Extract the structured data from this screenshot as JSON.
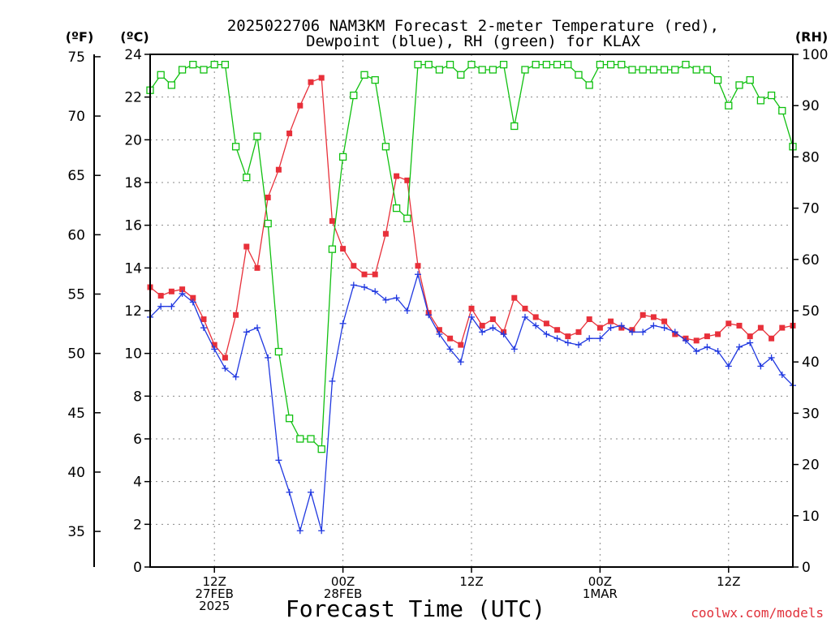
{
  "title": {
    "line1": "2025022706 NAM3KM Forecast 2-meter Temperature (red),",
    "line2": "Dewpoint (blue), RH (green) for KLAX"
  },
  "axis_labels": {
    "fahrenheit": "(ºF)",
    "celsius": "(ºC)",
    "rh": "(RH)"
  },
  "xlabel": "Forecast Time (UTC)",
  "watermark": "coolwx.com/models",
  "colors": {
    "temp": "#e8303a",
    "dewpoint": "#2038e0",
    "rh": "#10c010",
    "grid": "#888888",
    "axis": "#000000"
  },
  "chart_data": {
    "type": "line",
    "x_unit": "forecast hour from 2025022706 (3h steps, 00Z 28FEB = hour 18)",
    "x_ticks": [
      {
        "hour": 6,
        "label1": "12Z",
        "label2": "27FEB",
        "label3": "2025"
      },
      {
        "hour": 18,
        "label1": "00Z",
        "label2": "28FEB",
        "label3": ""
      },
      {
        "hour": 30,
        "label1": "12Z",
        "label2": "",
        "label3": ""
      },
      {
        "hour": 42,
        "label1": "00Z",
        "label2": "1MAR",
        "label3": ""
      },
      {
        "hour": 54,
        "label1": "12Z",
        "label2": "",
        "label3": ""
      }
    ],
    "xlim": [
      0,
      60
    ],
    "ylim_c": [
      0,
      24
    ],
    "yticks_c": [
      "0",
      "2",
      "4",
      "6",
      "8",
      "10",
      "12",
      "14",
      "16",
      "18",
      "20",
      "22",
      "24"
    ],
    "ylim_f": [
      32,
      75.2
    ],
    "yticks_f": [
      "35",
      "40",
      "45",
      "50",
      "55",
      "60",
      "65",
      "70",
      "75"
    ],
    "ylim_rh": [
      0,
      100
    ],
    "yticks_rh": [
      "0",
      "10",
      "20",
      "30",
      "40",
      "50",
      "60",
      "70",
      "80",
      "90",
      "100"
    ],
    "grid": true,
    "series": [
      {
        "name": "Temperature",
        "axis": "celsius",
        "marker": "filled-square",
        "x": [
          0,
          1,
          2,
          3,
          4,
          5,
          6,
          7,
          8,
          9,
          10,
          11,
          12,
          13,
          14,
          15,
          16,
          17,
          18,
          19,
          20,
          21,
          22,
          23,
          24,
          25,
          26,
          27,
          28,
          29,
          30,
          31,
          32,
          33,
          34,
          35,
          36,
          37,
          38,
          39,
          40,
          41,
          42,
          43,
          44,
          45,
          46,
          47,
          48,
          49,
          50,
          51,
          52,
          53,
          54,
          55,
          56,
          57,
          58,
          59,
          60
        ],
        "values": [
          13.1,
          12.7,
          12.9,
          13.0,
          12.6,
          11.6,
          10.4,
          9.8,
          11.8,
          15.0,
          14.0,
          17.3,
          18.6,
          20.3,
          21.6,
          22.7,
          22.9,
          16.2,
          14.9,
          14.1,
          13.7,
          13.7,
          15.6,
          18.3,
          18.1,
          14.1,
          11.9,
          11.1,
          10.7,
          10.4,
          12.1,
          11.3,
          11.6,
          11.0,
          12.6,
          12.1,
          11.7,
          11.4,
          11.1,
          10.8,
          11.0,
          11.6,
          11.2,
          11.5,
          11.2,
          11.1,
          11.8,
          11.7,
          11.5,
          10.9,
          10.7,
          10.6,
          10.8,
          10.9,
          11.4,
          11.3,
          10.8,
          11.2,
          10.7,
          11.2,
          11.3
        ]
      },
      {
        "name": "Dewpoint",
        "axis": "celsius",
        "marker": "plus",
        "x": [
          0,
          1,
          2,
          3,
          4,
          5,
          6,
          7,
          8,
          9,
          10,
          11,
          12,
          13,
          14,
          15,
          16,
          17,
          18,
          19,
          20,
          21,
          22,
          23,
          24,
          25,
          26,
          27,
          28,
          29,
          30,
          31,
          32,
          33,
          34,
          35,
          36,
          37,
          38,
          39,
          40,
          41,
          42,
          43,
          44,
          45,
          46,
          47,
          48,
          49,
          50,
          51,
          52,
          53,
          54,
          55,
          56,
          57,
          58,
          59,
          60
        ],
        "values": [
          11.7,
          12.2,
          12.2,
          12.8,
          12.4,
          11.2,
          10.2,
          9.3,
          8.9,
          11.0,
          11.2,
          9.8,
          5.0,
          3.5,
          1.7,
          3.5,
          1.7,
          8.7,
          11.4,
          13.2,
          13.1,
          12.9,
          12.5,
          12.6,
          12.0,
          13.7,
          11.8,
          10.9,
          10.2,
          9.6,
          11.7,
          11.0,
          11.2,
          10.9,
          10.2,
          11.7,
          11.3,
          10.9,
          10.7,
          10.5,
          10.4,
          10.7,
          10.7,
          11.2,
          11.3,
          11.0,
          11.0,
          11.3,
          11.2,
          11.0,
          10.6,
          10.1,
          10.3,
          10.1,
          9.4,
          10.3,
          10.5,
          9.4,
          9.8,
          9.0,
          8.5
        ]
      },
      {
        "name": "RH",
        "axis": "rh",
        "marker": "open-square",
        "x": [
          0,
          1,
          2,
          3,
          4,
          5,
          6,
          7,
          8,
          9,
          10,
          11,
          12,
          13,
          14,
          15,
          16,
          17,
          18,
          19,
          20,
          21,
          22,
          23,
          24,
          25,
          26,
          27,
          28,
          29,
          30,
          31,
          32,
          33,
          34,
          35,
          36,
          37,
          38,
          39,
          40,
          41,
          42,
          43,
          44,
          45,
          46,
          47,
          48,
          49,
          50,
          51,
          52,
          53,
          54,
          55,
          56,
          57,
          58,
          59,
          60
        ],
        "values": [
          93,
          96,
          94,
          97,
          98,
          97,
          98,
          98,
          82,
          76,
          84,
          67,
          42,
          29,
          25,
          25,
          23,
          62,
          80,
          92,
          96,
          95,
          82,
          70,
          68,
          98,
          98,
          97,
          98,
          96,
          98,
          97,
          97,
          98,
          86,
          97,
          98,
          98,
          98,
          98,
          96,
          94,
          98,
          98,
          98,
          97,
          97,
          97,
          97,
          97,
          98,
          97,
          97,
          95,
          90,
          94,
          95,
          91,
          92,
          89,
          82
        ]
      }
    ]
  }
}
